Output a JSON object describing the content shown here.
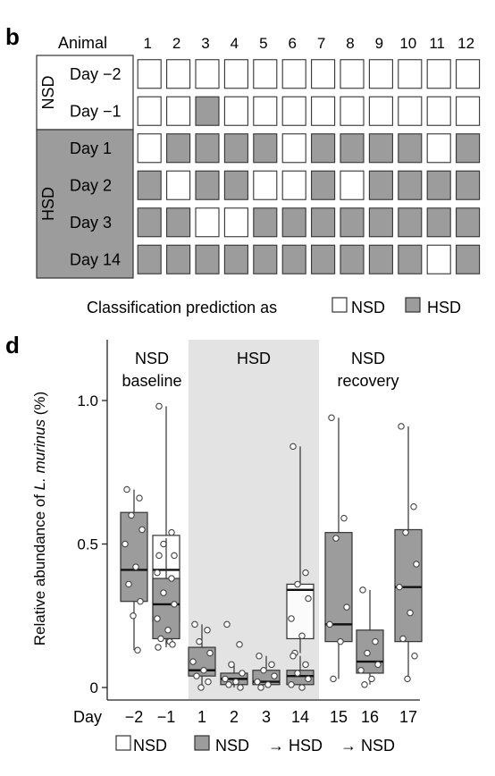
{
  "panel_b": {
    "letter": "b",
    "corner_label": "Animal",
    "animals": [
      "1",
      "2",
      "3",
      "4",
      "5",
      "6",
      "7",
      "8",
      "9",
      "10",
      "11",
      "12"
    ],
    "groups": [
      {
        "label": "NSD",
        "shaded": false,
        "rows": [
          0,
          1
        ]
      },
      {
        "label": "HSD",
        "shaded": true,
        "rows": [
          2,
          3,
          4,
          5
        ]
      }
    ],
    "rows": [
      {
        "day": "Day −2",
        "cells": [
          "N",
          "N",
          "N",
          "N",
          "N",
          "N",
          "N",
          "N",
          "N",
          "N",
          "N",
          "N"
        ]
      },
      {
        "day": "Day −1",
        "cells": [
          "N",
          "N",
          "H",
          "N",
          "N",
          "N",
          "N",
          "N",
          "N",
          "N",
          "N",
          "N"
        ]
      },
      {
        "day": "Day 1",
        "cells": [
          "N",
          "H",
          "H",
          "H",
          "H",
          "N",
          "H",
          "H",
          "H",
          "H",
          "N",
          "H"
        ]
      },
      {
        "day": "Day 2",
        "cells": [
          "H",
          "N",
          "H",
          "H",
          "N",
          "N",
          "H",
          "N",
          "H",
          "H",
          "H",
          "H"
        ]
      },
      {
        "day": "Day 3",
        "cells": [
          "H",
          "H",
          "N",
          "N",
          "H",
          "H",
          "H",
          "H",
          "H",
          "H",
          "H",
          "H"
        ]
      },
      {
        "day": "Day 14",
        "cells": [
          "H",
          "H",
          "H",
          "H",
          "H",
          "H",
          "H",
          "H",
          "H",
          "H",
          "N",
          "H"
        ]
      }
    ],
    "legend": {
      "prefix": "Classification prediction as",
      "nsd": "NSD",
      "hsd": "HSD"
    }
  },
  "panel_d": {
    "letter": "d",
    "region_labels": [
      {
        "lines": [
          "NSD",
          "baseline"
        ]
      },
      {
        "lines": [
          "HSD"
        ]
      },
      {
        "lines": [
          "NSD",
          "recovery"
        ]
      }
    ],
    "ylabel_prefix": "Relative abundance of ",
    "ylabel_species": "L. murinus",
    "ylabel_suffix": " (%)",
    "x_axis_label": "Day",
    "legend": {
      "nsd": "NSD",
      "mid": "NSD",
      "arrow1": "→ HSD",
      "arrow2": "→ NSD"
    }
  },
  "colors": {
    "hsd_fill": "#9c9c9c",
    "nsd_fill": "#ffffff",
    "hsd_region": "#e3e3e3",
    "border": "#333333"
  },
  "chart_data": {
    "type": "box",
    "xlabel": "Day",
    "ylabel": "Relative abundance of L. murinus (%)",
    "ylim": [
      -0.05,
      1.2
    ],
    "yticks": [
      0,
      0.5,
      1.0
    ],
    "ytick_labels": [
      "0",
      "0.5",
      "1.0"
    ],
    "shaded_region": {
      "label": "HSD",
      "from_category": "1",
      "to_category": "14"
    },
    "groups": [
      {
        "day": "−2",
        "fill": "hsd",
        "q1": 0.3,
        "median": 0.41,
        "q3": 0.61,
        "whisker_low": 0.13,
        "whisker_high": 0.69,
        "points": [
          0.69,
          0.66,
          0.6,
          0.55,
          0.5,
          0.42,
          0.36,
          0.3,
          0.25,
          0.13
        ]
      },
      {
        "day": "−1",
        "fill": "nsd",
        "q1": 0.23,
        "median": 0.41,
        "q3": 0.53,
        "whisker_low": 0.15,
        "whisker_high": 0.98,
        "points": [
          0.98,
          0.54,
          0.5,
          0.46,
          0.4,
          0.35,
          0.3,
          0.25,
          0.2,
          0.16,
          0.14
        ]
      },
      {
        "day": "−1",
        "fill": "hsd",
        "q1": 0.17,
        "median": 0.29,
        "q3": 0.38,
        "whisker_low": 0.14,
        "whisker_high": 0.52,
        "points": [
          0.46,
          0.38,
          0.33,
          0.29,
          0.24,
          0.2,
          0.17,
          0.15
        ]
      },
      {
        "day": "1",
        "fill": "hsd",
        "q1": 0.04,
        "median": 0.06,
        "q3": 0.14,
        "whisker_low": 0.0,
        "whisker_high": 0.22,
        "points": [
          0.22,
          0.2,
          0.16,
          0.12,
          0.09,
          0.06,
          0.04,
          0.02,
          0.0
        ]
      },
      {
        "day": "2",
        "fill": "hsd",
        "q1": 0.01,
        "median": 0.03,
        "q3": 0.05,
        "whisker_low": 0.0,
        "whisker_high": 0.08,
        "points": [
          0.22,
          0.15,
          0.08,
          0.05,
          0.03,
          0.02,
          0.01,
          0.0
        ]
      },
      {
        "day": "3",
        "fill": "hsd",
        "q1": 0.01,
        "median": 0.02,
        "q3": 0.06,
        "whisker_low": 0.0,
        "whisker_high": 0.11,
        "points": [
          0.11,
          0.08,
          0.06,
          0.04,
          0.02,
          0.01,
          0.0
        ]
      },
      {
        "day": "14",
        "fill": "nsd",
        "q1": 0.17,
        "median": 0.34,
        "q3": 0.36,
        "whisker_low": 0.12,
        "whisker_high": 0.84,
        "points": [
          0.84,
          0.4,
          0.36,
          0.31,
          0.24,
          0.18,
          0.12
        ]
      },
      {
        "day": "14",
        "fill": "hsd",
        "q1": 0.01,
        "median": 0.04,
        "q3": 0.06,
        "whisker_low": 0.0,
        "whisker_high": 0.11,
        "points": [
          0.11,
          0.08,
          0.05,
          0.03,
          0.01,
          0.0
        ]
      },
      {
        "day": "15",
        "fill": "hsd",
        "q1": 0.16,
        "median": 0.22,
        "q3": 0.54,
        "whisker_low": 0.03,
        "whisker_high": 0.94,
        "points": [
          0.94,
          0.59,
          0.52,
          0.28,
          0.22,
          0.16,
          0.03
        ]
      },
      {
        "day": "16",
        "fill": "hsd",
        "q1": 0.05,
        "median": 0.09,
        "q3": 0.2,
        "whisker_low": 0.01,
        "whisker_high": 0.34,
        "points": [
          0.34,
          0.16,
          0.12,
          0.08,
          0.06,
          0.03,
          0.01
        ]
      },
      {
        "day": "17",
        "fill": "hsd",
        "q1": 0.16,
        "median": 0.35,
        "q3": 0.55,
        "whisker_low": 0.03,
        "whisker_high": 0.91,
        "points": [
          0.91,
          0.63,
          0.54,
          0.43,
          0.35,
          0.26,
          0.17,
          0.11,
          0.03
        ]
      }
    ],
    "categories": [
      "−2",
      "−1",
      "1",
      "2",
      "3",
      "14",
      "15",
      "16",
      "17"
    ]
  }
}
